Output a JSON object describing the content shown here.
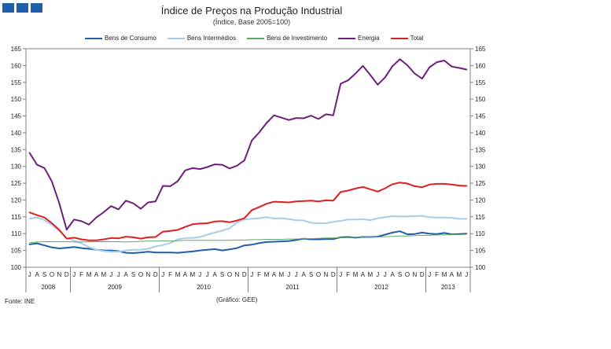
{
  "header": {
    "title": "Índice de Preços na Produção Industrial",
    "subtitle": "(Índice, Base 2005=100)"
  },
  "footer": {
    "source": "Fonte: INE",
    "credit": "(Gráfico: GEE)"
  },
  "chart_data": {
    "type": "line",
    "title": "Índice de Preços na Produção Industrial",
    "subtitle": "(Índice, Base 2005=100)",
    "ylim": [
      100,
      165
    ],
    "yticks": [
      100,
      105,
      110,
      115,
      120,
      125,
      130,
      135,
      140,
      145,
      150,
      155,
      160,
      165
    ],
    "xlabels": [
      "J",
      "A",
      "S",
      "O",
      "N",
      "D",
      "J",
      "F",
      "M",
      "A",
      "M",
      "J",
      "J",
      "A",
      "S",
      "O",
      "N",
      "D",
      "J",
      "F",
      "M",
      "A",
      "M",
      "J",
      "J",
      "A",
      "S",
      "O",
      "N",
      "D",
      "J",
      "F",
      "M",
      "A",
      "M",
      "J",
      "J",
      "A",
      "S",
      "O",
      "N",
      "D",
      "J",
      "F",
      "M",
      "A",
      "M",
      "J",
      "J",
      "A",
      "S",
      "O",
      "N",
      "D",
      "J",
      "F",
      "M",
      "A",
      "M",
      "J"
    ],
    "year_groups": [
      {
        "label": "2008",
        "start": 0,
        "end": 5
      },
      {
        "label": "2009",
        "start": 6,
        "end": 17
      },
      {
        "label": "2010",
        "start": 18,
        "end": 29
      },
      {
        "label": "2011",
        "start": 30,
        "end": 41
      },
      {
        "label": "2012",
        "start": 42,
        "end": 53
      },
      {
        "label": "2013",
        "start": 54,
        "end": 59
      }
    ],
    "legend_position": "top",
    "grid": false,
    "series": [
      {
        "name": "Bens de Consumo",
        "color": "#1f5ea8",
        "values": [
          106.8,
          107.1,
          106.5,
          105.9,
          105.6,
          105.8,
          106.0,
          105.7,
          105.5,
          105.2,
          105.0,
          105.0,
          104.8,
          104.3,
          104.2,
          104.4,
          104.6,
          104.4,
          104.4,
          104.4,
          104.3,
          104.5,
          104.7,
          105.0,
          105.2,
          105.4,
          105.0,
          105.3,
          105.7,
          106.5,
          106.7,
          107.2,
          107.5,
          107.6,
          107.7,
          107.8,
          108.1,
          108.5,
          108.3,
          108.3,
          108.4,
          108.4,
          108.9,
          109.0,
          108.8,
          109.0,
          109.0,
          109.1,
          109.7,
          110.3,
          110.7,
          109.8,
          109.9,
          110.3,
          110.0,
          109.9,
          110.2,
          109.8,
          109.9,
          110.0
        ]
      },
      {
        "name": "Bens Intermédios",
        "color": "#a9cde8",
        "values": [
          114.5,
          114.8,
          114.0,
          112.6,
          110.8,
          108.7,
          107.9,
          107.1,
          106.0,
          105.2,
          104.8,
          104.6,
          104.6,
          105.0,
          105.2,
          105.2,
          105.5,
          106.2,
          106.6,
          107.2,
          108.3,
          108.7,
          108.7,
          109.0,
          109.7,
          110.3,
          110.9,
          111.6,
          113.3,
          114.2,
          114.4,
          114.6,
          114.9,
          114.5,
          114.6,
          114.3,
          114.0,
          113.9,
          113.2,
          113.1,
          113.1,
          113.5,
          113.8,
          114.2,
          114.2,
          114.3,
          114.0,
          114.6,
          114.9,
          115.2,
          115.1,
          115.1,
          115.2,
          115.3,
          114.9,
          114.8,
          114.8,
          114.7,
          114.4,
          114.4
        ]
      },
      {
        "name": "Bens de Investimento",
        "color": "#5fa86c",
        "values": [
          107.3,
          107.5,
          107.6,
          107.6,
          107.6,
          107.6,
          107.5,
          107.5,
          107.6,
          107.6,
          107.6,
          107.6,
          107.6,
          107.5,
          107.6,
          107.7,
          107.8,
          107.8,
          107.9,
          107.8,
          107.9,
          108.0,
          108.0,
          108.0,
          108.0,
          108.0,
          108.0,
          108.0,
          108.1,
          108.1,
          108.2,
          108.2,
          108.3,
          108.3,
          108.3,
          108.4,
          108.4,
          108.5,
          108.5,
          108.6,
          108.7,
          108.7,
          108.8,
          108.8,
          108.9,
          108.9,
          109.0,
          109.0,
          109.1,
          109.2,
          109.3,
          109.3,
          109.4,
          109.5,
          109.5,
          109.6,
          109.6,
          109.7,
          109.7,
          109.8
        ]
      },
      {
        "name": "Energia",
        "color": "#6e1f7c",
        "values": [
          134.0,
          130.5,
          129.5,
          125.5,
          119.0,
          111.2,
          114.2,
          113.7,
          112.7,
          114.8,
          116.4,
          118.2,
          117.2,
          119.8,
          119.0,
          117.4,
          119.3,
          119.6,
          124.2,
          124.1,
          125.6,
          128.8,
          129.5,
          129.2,
          129.8,
          130.6,
          130.5,
          129.4,
          130.2,
          131.8,
          137.7,
          140.1,
          142.9,
          145.2,
          144.5,
          143.8,
          144.4,
          144.3,
          145.1,
          144.1,
          145.5,
          145.2,
          154.6,
          155.6,
          157.6,
          159.9,
          157.2,
          154.3,
          156.5,
          159.8,
          161.9,
          160.1,
          157.6,
          156.1,
          159.5,
          161.0,
          161.5,
          159.7,
          159.3,
          158.8
        ]
      },
      {
        "name": "Total",
        "color": "#e02020",
        "values": [
          116.3,
          115.5,
          114.8,
          113.1,
          111.1,
          108.5,
          108.8,
          108.3,
          108.0,
          108.0,
          108.3,
          108.7,
          108.6,
          109.1,
          108.9,
          108.5,
          108.9,
          109.0,
          110.6,
          110.8,
          111.1,
          112.0,
          112.8,
          113.0,
          113.1,
          113.6,
          113.7,
          113.4,
          113.9,
          114.6,
          117.0,
          117.9,
          118.9,
          119.5,
          119.4,
          119.3,
          119.6,
          119.7,
          119.8,
          119.6,
          119.9,
          119.8,
          122.4,
          122.8,
          123.4,
          123.9,
          123.2,
          122.5,
          123.5,
          124.7,
          125.2,
          124.9,
          124.1,
          123.8,
          124.6,
          124.8,
          124.8,
          124.6,
          124.3,
          124.2
        ]
      }
    ]
  }
}
